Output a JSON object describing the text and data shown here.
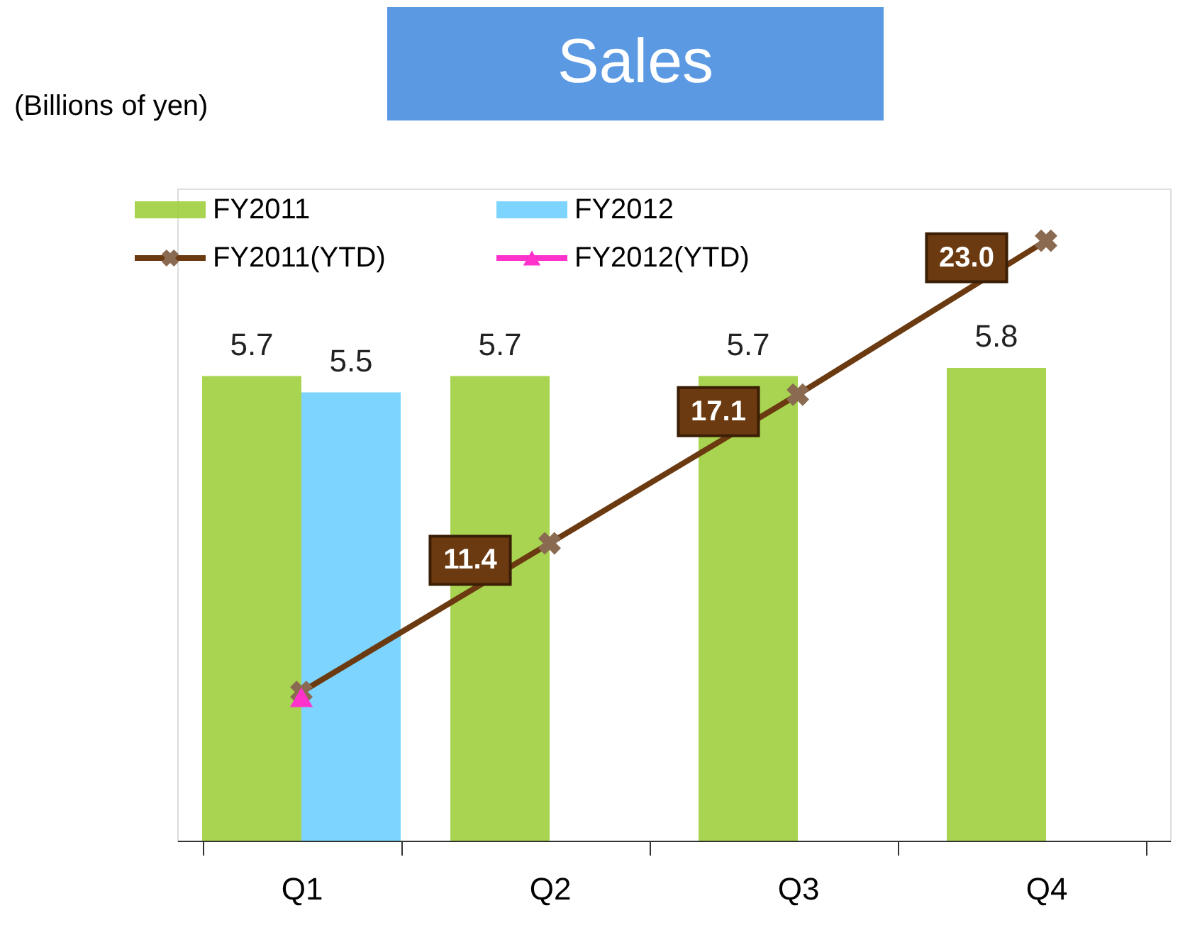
{
  "chart_data": {
    "type": "bar",
    "title": "Sales",
    "ylabel": "(Billions of yen)",
    "categories": [
      "Q1",
      "Q2",
      "Q3",
      "Q4"
    ],
    "series": [
      {
        "name": "FY2011",
        "color": "#99cc33",
        "values": [
          5.7,
          5.7,
          5.7,
          5.8
        ]
      },
      {
        "name": "FY2012",
        "color": "#66ccff",
        "values": [
          5.5,
          null,
          null,
          null
        ]
      },
      {
        "name": "FY2011(YTD)",
        "type": "line",
        "axis": "y2",
        "marker": "cross",
        "color": "#6b3a10",
        "values": [
          5.7,
          11.4,
          17.1,
          23.0
        ],
        "value_labels": [
          null,
          "11.4",
          "17.1",
          "23.0"
        ]
      },
      {
        "name": "FY2012(YTD)",
        "type": "line",
        "axis": "y2",
        "marker": "triangle",
        "color": "#ff33cc",
        "values": [
          5.5,
          null,
          null,
          null
        ],
        "value_labels": [
          null,
          null,
          null,
          null
        ]
      }
    ],
    "ylim": [
      0,
      8
    ],
    "y2lim": [
      0,
      25
    ],
    "tick_labels": "x",
    "grid": false,
    "legend": "top left",
    "data_labels": true
  }
}
